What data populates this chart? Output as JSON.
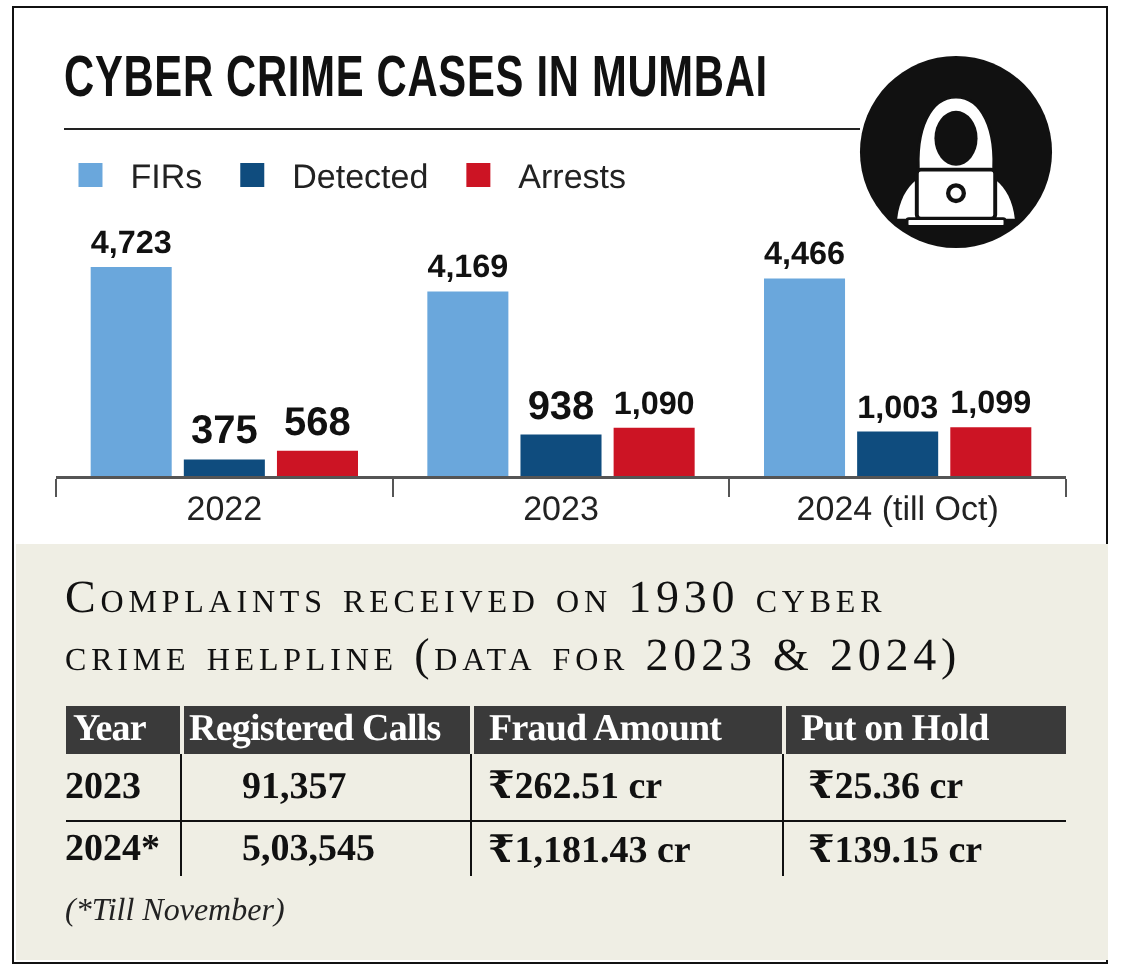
{
  "chart_data": [
    {
      "type": "bar",
      "title": "CYBER CRIME CASES IN MUMBAI",
      "categories": [
        "2022",
        "2023",
        "2024 (till Oct)"
      ],
      "series": [
        {
          "name": "FIRs",
          "color": "#6aa7dc",
          "values": [
            4723,
            4169,
            4466
          ],
          "value_labels": [
            "4,723",
            "4,169",
            "4,466"
          ]
        },
        {
          "name": "Detected",
          "color": "#0f4c7e",
          "values": [
            375,
            938,
            1003
          ],
          "value_labels": [
            "375",
            "938",
            "1,003"
          ]
        },
        {
          "name": "Arrests",
          "color": "#cc1424",
          "values": [
            568,
            1090,
            1099
          ],
          "value_labels": [
            "568",
            "1,090",
            "1,099"
          ]
        }
      ],
      "legend": "top left",
      "tick_labels": "x"
    },
    {
      "type": "other",
      "title": "Complaints received on 1930 cyber crime helpline (data for 2023 & 2024)",
      "ylabel": "Year",
      "categories": [
        "Registered Calls",
        "Fraud Amount",
        "Put on Hold"
      ],
      "y_categories": [
        "2023",
        "2024*"
      ],
      "cell_labels": [
        [
          "91,357",
          "₹262.51 cr",
          "₹25.36 cr"
        ],
        [
          "5,03,545",
          "₹1,181.43 cr",
          "₹139.15 cr"
        ]
      ],
      "annotations": [
        "(*Till November)"
      ]
    }
  ]
}
